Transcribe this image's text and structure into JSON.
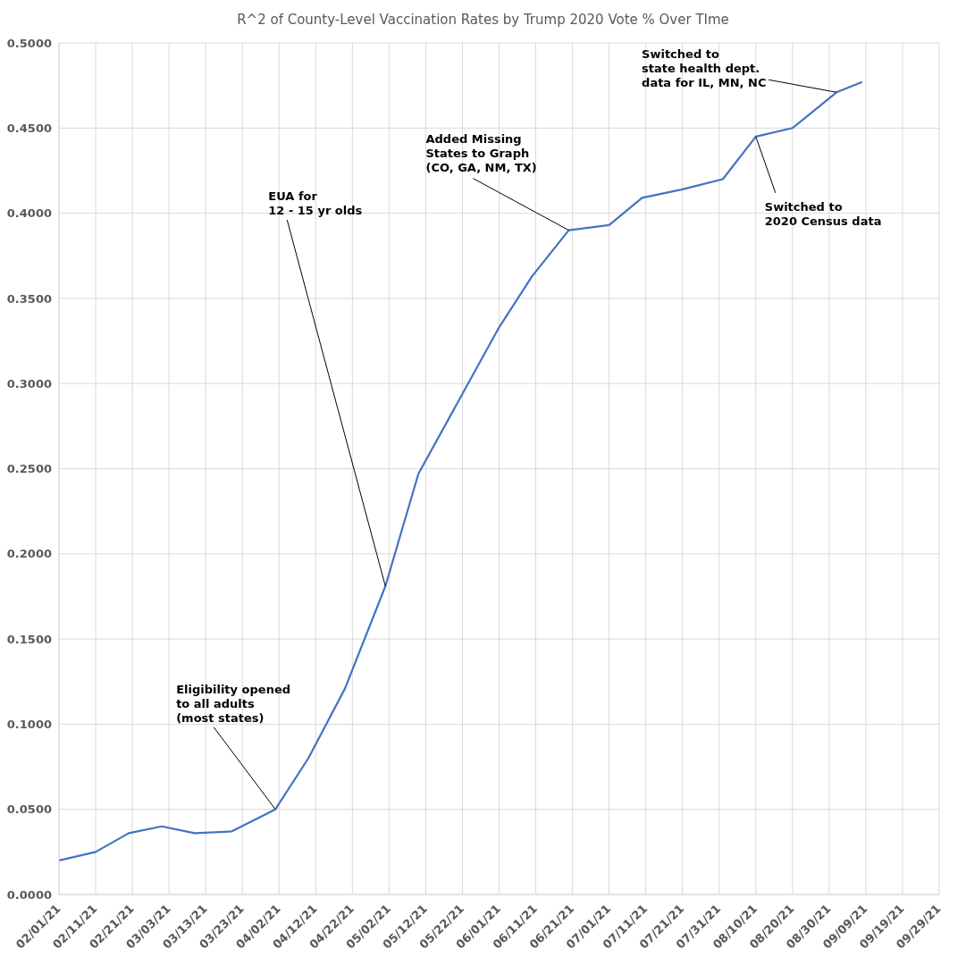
{
  "chart_data": {
    "type": "line",
    "title": "R^2 of County-Level Vaccination Rates by Trump 2020 Vote % Over TIme",
    "x": [
      "--02-01",
      "--02-11",
      "--02-20",
      "--03-01",
      "--03-10",
      "--03-20",
      "--04-01",
      "--04-10",
      "--04-20",
      "--05-01",
      "--05-10",
      "--05-21",
      "--06-01",
      "--06-10",
      "--06-20",
      "--07-01",
      "--07-10",
      "--07-21",
      "--08-01",
      "--08-10",
      "--08-20",
      "--09-01",
      "--09-08"
    ],
    "series": [
      {
        "color": "#4472c4",
        "values": [
          0.02,
          0.025,
          0.036,
          0.04,
          0.036,
          0.037,
          0.05,
          0.08,
          0.121,
          0.181,
          0.247,
          0.29,
          0.333,
          0.363,
          0.39,
          0.393,
          0.409,
          0.414,
          0.42,
          0.445,
          0.45,
          0.471,
          0.477
        ]
      }
    ],
    "xlim": [
      "--02-01",
      "--09-29"
    ],
    "xticks": [
      {
        "value": "--02-01",
        "label": "02/01/21"
      },
      {
        "value": "--02-11",
        "label": "02/11/21"
      },
      {
        "value": "--02-21",
        "label": "02/21/21"
      },
      {
        "value": "--03-03",
        "label": "03/03/21"
      },
      {
        "value": "--03-13",
        "label": "03/13/21"
      },
      {
        "value": "--03-23",
        "label": "03/23/21"
      },
      {
        "value": "--04-02",
        "label": "04/02/21"
      },
      {
        "value": "--04-12",
        "label": "04/12/21"
      },
      {
        "value": "--04-22",
        "label": "04/22/21"
      },
      {
        "value": "--05-02",
        "label": "05/02/21"
      },
      {
        "value": "--05-12",
        "label": "05/12/21"
      },
      {
        "value": "--05-22",
        "label": "05/22/21"
      },
      {
        "value": "--06-01",
        "label": "06/01/21"
      },
      {
        "value": "--06-11",
        "label": "06/11/21"
      },
      {
        "value": "--06-21",
        "label": "06/21/21"
      },
      {
        "value": "--07-01",
        "label": "07/01/21"
      },
      {
        "value": "--07-11",
        "label": "07/11/21"
      },
      {
        "value": "--07-21",
        "label": "07/21/21"
      },
      {
        "value": "--07-31",
        "label": "07/31/21"
      },
      {
        "value": "--08-10",
        "label": "08/10/21"
      },
      {
        "value": "--08-20",
        "label": "08/20/21"
      },
      {
        "value": "--08-30",
        "label": "08/30/21"
      },
      {
        "value": "--09-09",
        "label": "09/09/21"
      },
      {
        "value": "--09-19",
        "label": "09/19/21"
      },
      {
        "value": "--09-29",
        "label": "09/29/21"
      }
    ],
    "ylim": [
      0,
      0.5
    ],
    "yticks": [
      {
        "value": 0,
        "label": "0.0000"
      },
      {
        "value": 0.05,
        "label": "0.0500"
      },
      {
        "value": 0.1,
        "label": "0.1000"
      },
      {
        "value": 0.15,
        "label": "0.1500"
      },
      {
        "value": 0.2,
        "label": "0.2000"
      },
      {
        "value": 0.25,
        "label": "0.2500"
      },
      {
        "value": 0.3,
        "label": "0.3000"
      },
      {
        "value": 0.35,
        "label": "0.3500"
      },
      {
        "value": 0.4,
        "label": "0.4000"
      },
      {
        "value": 0.45,
        "label": "0.4500"
      },
      {
        "value": 0.5,
        "label": "0.5000"
      }
    ],
    "grid": true,
    "annotations": [
      {
        "text": "Eligibility opened\nto all adults\n(most states)",
        "x": "--04-01",
        "y": 0.05
      },
      {
        "text": "EUA for\n12 - 15 yr olds",
        "x": "--05-01",
        "y": 0.181
      },
      {
        "text": "Added Missing\nStates to Graph\n(CO, GA, NM, TX)",
        "x": "--06-20",
        "y": 0.39
      },
      {
        "text": "Switched to\n2020 Census data",
        "x": "--08-10",
        "y": 0.445
      },
      {
        "text": "Switched to\nstate health dept.\ndata for IL, MN, NC",
        "x": "--09-01",
        "y": 0.471
      }
    ]
  }
}
